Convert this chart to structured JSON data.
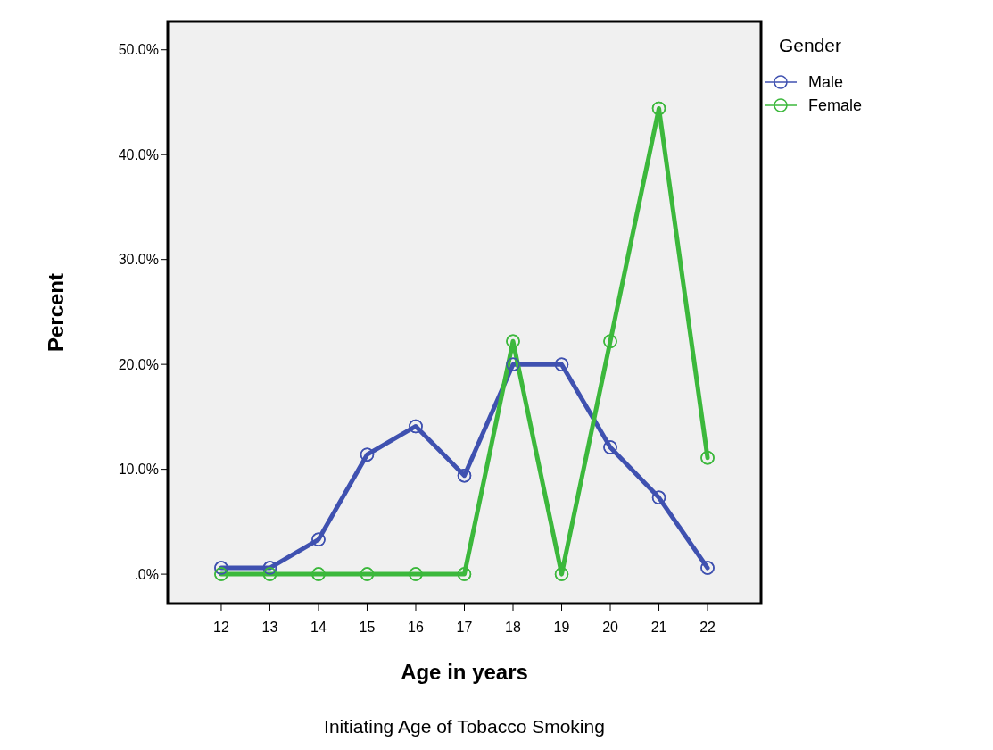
{
  "chart_data": {
    "type": "line",
    "xlabel": "Age in years",
    "ylabel": "Percent",
    "legend_title": "Gender",
    "annotations": [
      "Initiating Age of Tobacco Smoking"
    ],
    "x": [
      12,
      13,
      14,
      15,
      16,
      17,
      18,
      19,
      20,
      21,
      22
    ],
    "xlim": [
      10.9,
      23.1
    ],
    "xticks": [
      12,
      13,
      14,
      15,
      16,
      17,
      18,
      19,
      20,
      21,
      22
    ],
    "ylim": [
      -2.8,
      52.7
    ],
    "yticks": [
      {
        "value": 0,
        "label": ".0%"
      },
      {
        "value": 10,
        "label": "10.0%"
      },
      {
        "value": 20,
        "label": "20.0%"
      },
      {
        "value": 30,
        "label": "30.0%"
      },
      {
        "value": 40,
        "label": "40.0%"
      },
      {
        "value": 50,
        "label": "50.0%"
      }
    ],
    "series": [
      {
        "name": "Male",
        "color": "#3f51b0",
        "values": [
          0.6,
          0.6,
          3.3,
          11.4,
          14.1,
          9.4,
          20.0,
          20.0,
          12.1,
          7.3,
          0.6
        ]
      },
      {
        "name": "Female",
        "color": "#3cb83c",
        "values": [
          0,
          0,
          0,
          0,
          0,
          0,
          22.2,
          0,
          22.2,
          44.4,
          11.1
        ]
      }
    ],
    "marker": "circle",
    "line_style": "solid",
    "grid": false,
    "legend": "top right"
  }
}
